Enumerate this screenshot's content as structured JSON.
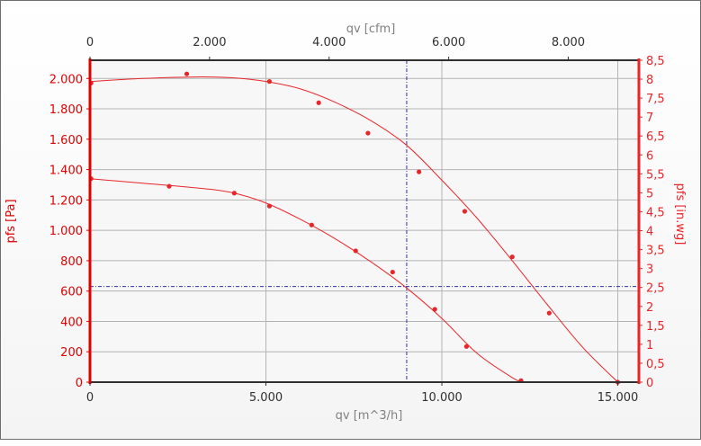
{
  "chart_data": {
    "type": "line",
    "x_axis_bottom": {
      "label": "qv [m^3/h]",
      "range": [
        0,
        15600
      ],
      "ticks": [
        0,
        5000,
        10000,
        15000
      ],
      "tick_labels": [
        "0",
        "5.000",
        "10.000",
        "15.000"
      ]
    },
    "x_axis_top": {
      "label": "qv [cfm]",
      "range": [
        0,
        9182
      ],
      "ticks": [
        0,
        2000,
        4000,
        6000,
        8000
      ],
      "tick_labels": [
        "0",
        "2.000",
        "4.000",
        "6.000",
        "8.000"
      ]
    },
    "y_axis_left": {
      "label": "pfs [Pa]",
      "range": [
        0,
        2120
      ],
      "ticks": [
        0,
        200,
        400,
        600,
        800,
        1000,
        1200,
        1400,
        1600,
        1800,
        2000
      ],
      "tick_labels": [
        "0",
        "200",
        "400",
        "600",
        "800",
        "1.000",
        "1.200",
        "1.400",
        "1.600",
        "1.800",
        "2.000"
      ]
    },
    "y_axis_right": {
      "label": "pfs [in.wg]",
      "range": [
        0,
        8.5
      ],
      "ticks": [
        0,
        0.5,
        1,
        1.5,
        2,
        2.5,
        3,
        3.5,
        4,
        4.5,
        5,
        5.5,
        6,
        6.5,
        7,
        7.5,
        8,
        8.5
      ],
      "tick_labels": [
        "0",
        "0,5",
        "1",
        "1,5",
        "2",
        "2,5",
        "3",
        "3,5",
        "4",
        "4,5",
        "5",
        "5,5",
        "6",
        "6,5",
        "7",
        "7,5",
        "8",
        "8,5"
      ]
    },
    "grid": true,
    "crosshair": {
      "x": 9000,
      "y": 630
    },
    "series": [
      {
        "curve": [
          [
            0,
            1980
          ],
          [
            1500,
            2000
          ],
          [
            3000,
            2010
          ],
          [
            4000,
            2005
          ],
          [
            5000,
            1980
          ],
          [
            6000,
            1930
          ],
          [
            7000,
            1840
          ],
          [
            8000,
            1720
          ],
          [
            9000,
            1560
          ],
          [
            10000,
            1330
          ],
          [
            11000,
            1080
          ],
          [
            12000,
            800
          ],
          [
            13000,
            510
          ],
          [
            14000,
            230
          ],
          [
            15000,
            0
          ]
        ],
        "points": [
          [
            30,
            1970
          ],
          [
            2750,
            2030
          ],
          [
            5100,
            1980
          ],
          [
            6500,
            1840
          ],
          [
            7900,
            1640
          ],
          [
            9350,
            1385
          ],
          [
            10650,
            1125
          ],
          [
            12000,
            825
          ],
          [
            13050,
            455
          ],
          [
            15000,
            0
          ]
        ]
      },
      {
        "curve": [
          [
            0,
            1340
          ],
          [
            1500,
            1310
          ],
          [
            3000,
            1280
          ],
          [
            4000,
            1250
          ],
          [
            5000,
            1180
          ],
          [
            6000,
            1070
          ],
          [
            7000,
            940
          ],
          [
            8000,
            790
          ],
          [
            9000,
            620
          ],
          [
            10000,
            420
          ],
          [
            11000,
            190
          ],
          [
            12000,
            30
          ],
          [
            12300,
            0
          ]
        ],
        "points": [
          [
            30,
            1340
          ],
          [
            2250,
            1290
          ],
          [
            4100,
            1245
          ],
          [
            5100,
            1160
          ],
          [
            6300,
            1035
          ],
          [
            7550,
            865
          ],
          [
            8600,
            725
          ],
          [
            9800,
            480
          ],
          [
            10700,
            235
          ],
          [
            12250,
            10
          ]
        ]
      }
    ],
    "colors": {
      "curve": "#e8262a",
      "axis_left": "#e00000",
      "crosshair": "#3030b0"
    }
  }
}
